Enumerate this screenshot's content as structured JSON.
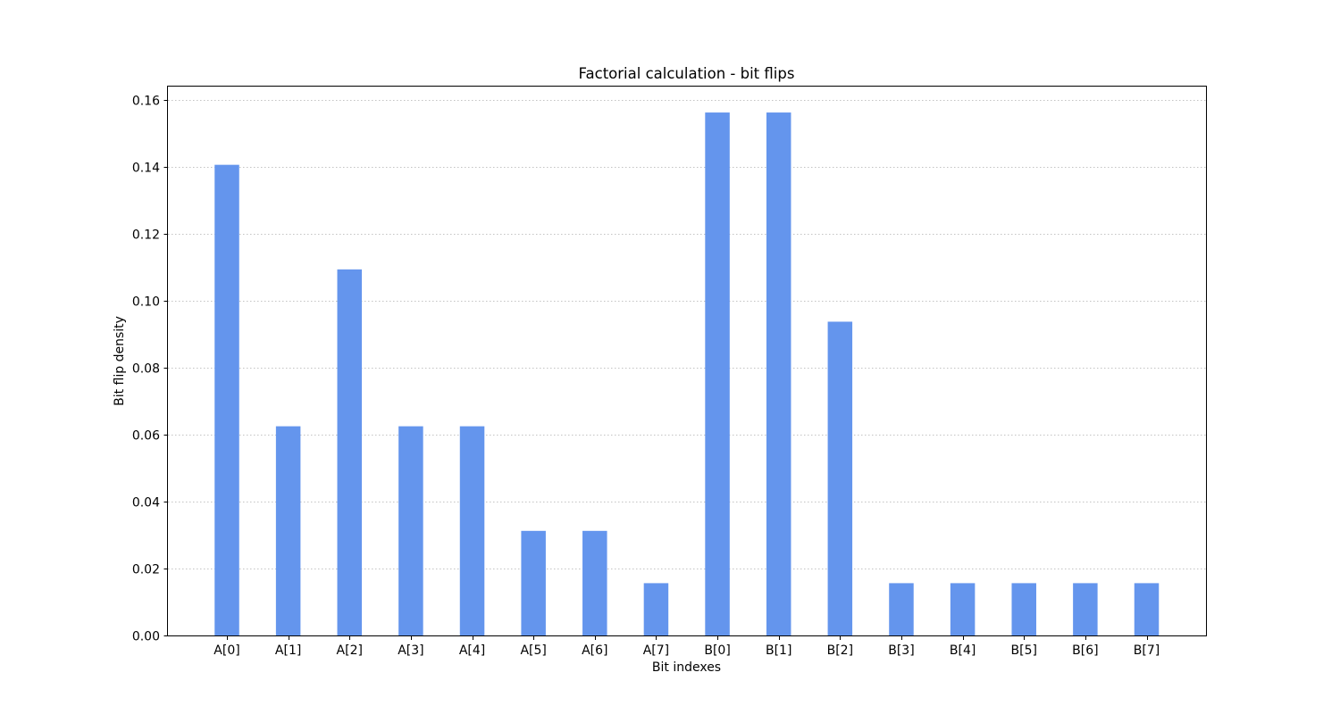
{
  "chart_data": {
    "type": "bar",
    "title": "Factorial calculation - bit flips",
    "xlabel": "Bit indexes",
    "ylabel": "Bit flip density",
    "categories": [
      "A[0]",
      "A[1]",
      "A[2]",
      "A[3]",
      "A[4]",
      "A[5]",
      "A[6]",
      "A[7]",
      "B[0]",
      "B[1]",
      "B[2]",
      "B[3]",
      "B[4]",
      "B[5]",
      "B[6]",
      "B[7]"
    ],
    "values": [
      0.140625,
      0.0625,
      0.109375,
      0.0625,
      0.0625,
      0.03125,
      0.03125,
      0.015625,
      0.15625,
      0.15625,
      0.09375,
      0.015625,
      0.015625,
      0.015625,
      0.015625,
      0.015625
    ],
    "ylim": [
      0,
      0.164
    ],
    "yticks": [
      0.0,
      0.02,
      0.04,
      0.06,
      0.08,
      0.1,
      0.12,
      0.14,
      0.16
    ],
    "ytick_labels": [
      "0.00",
      "0.02",
      "0.04",
      "0.06",
      "0.08",
      "0.10",
      "0.12",
      "0.14",
      "0.16"
    ],
    "grid": "horizontal dotted",
    "bar_color": "#6495ed"
  }
}
